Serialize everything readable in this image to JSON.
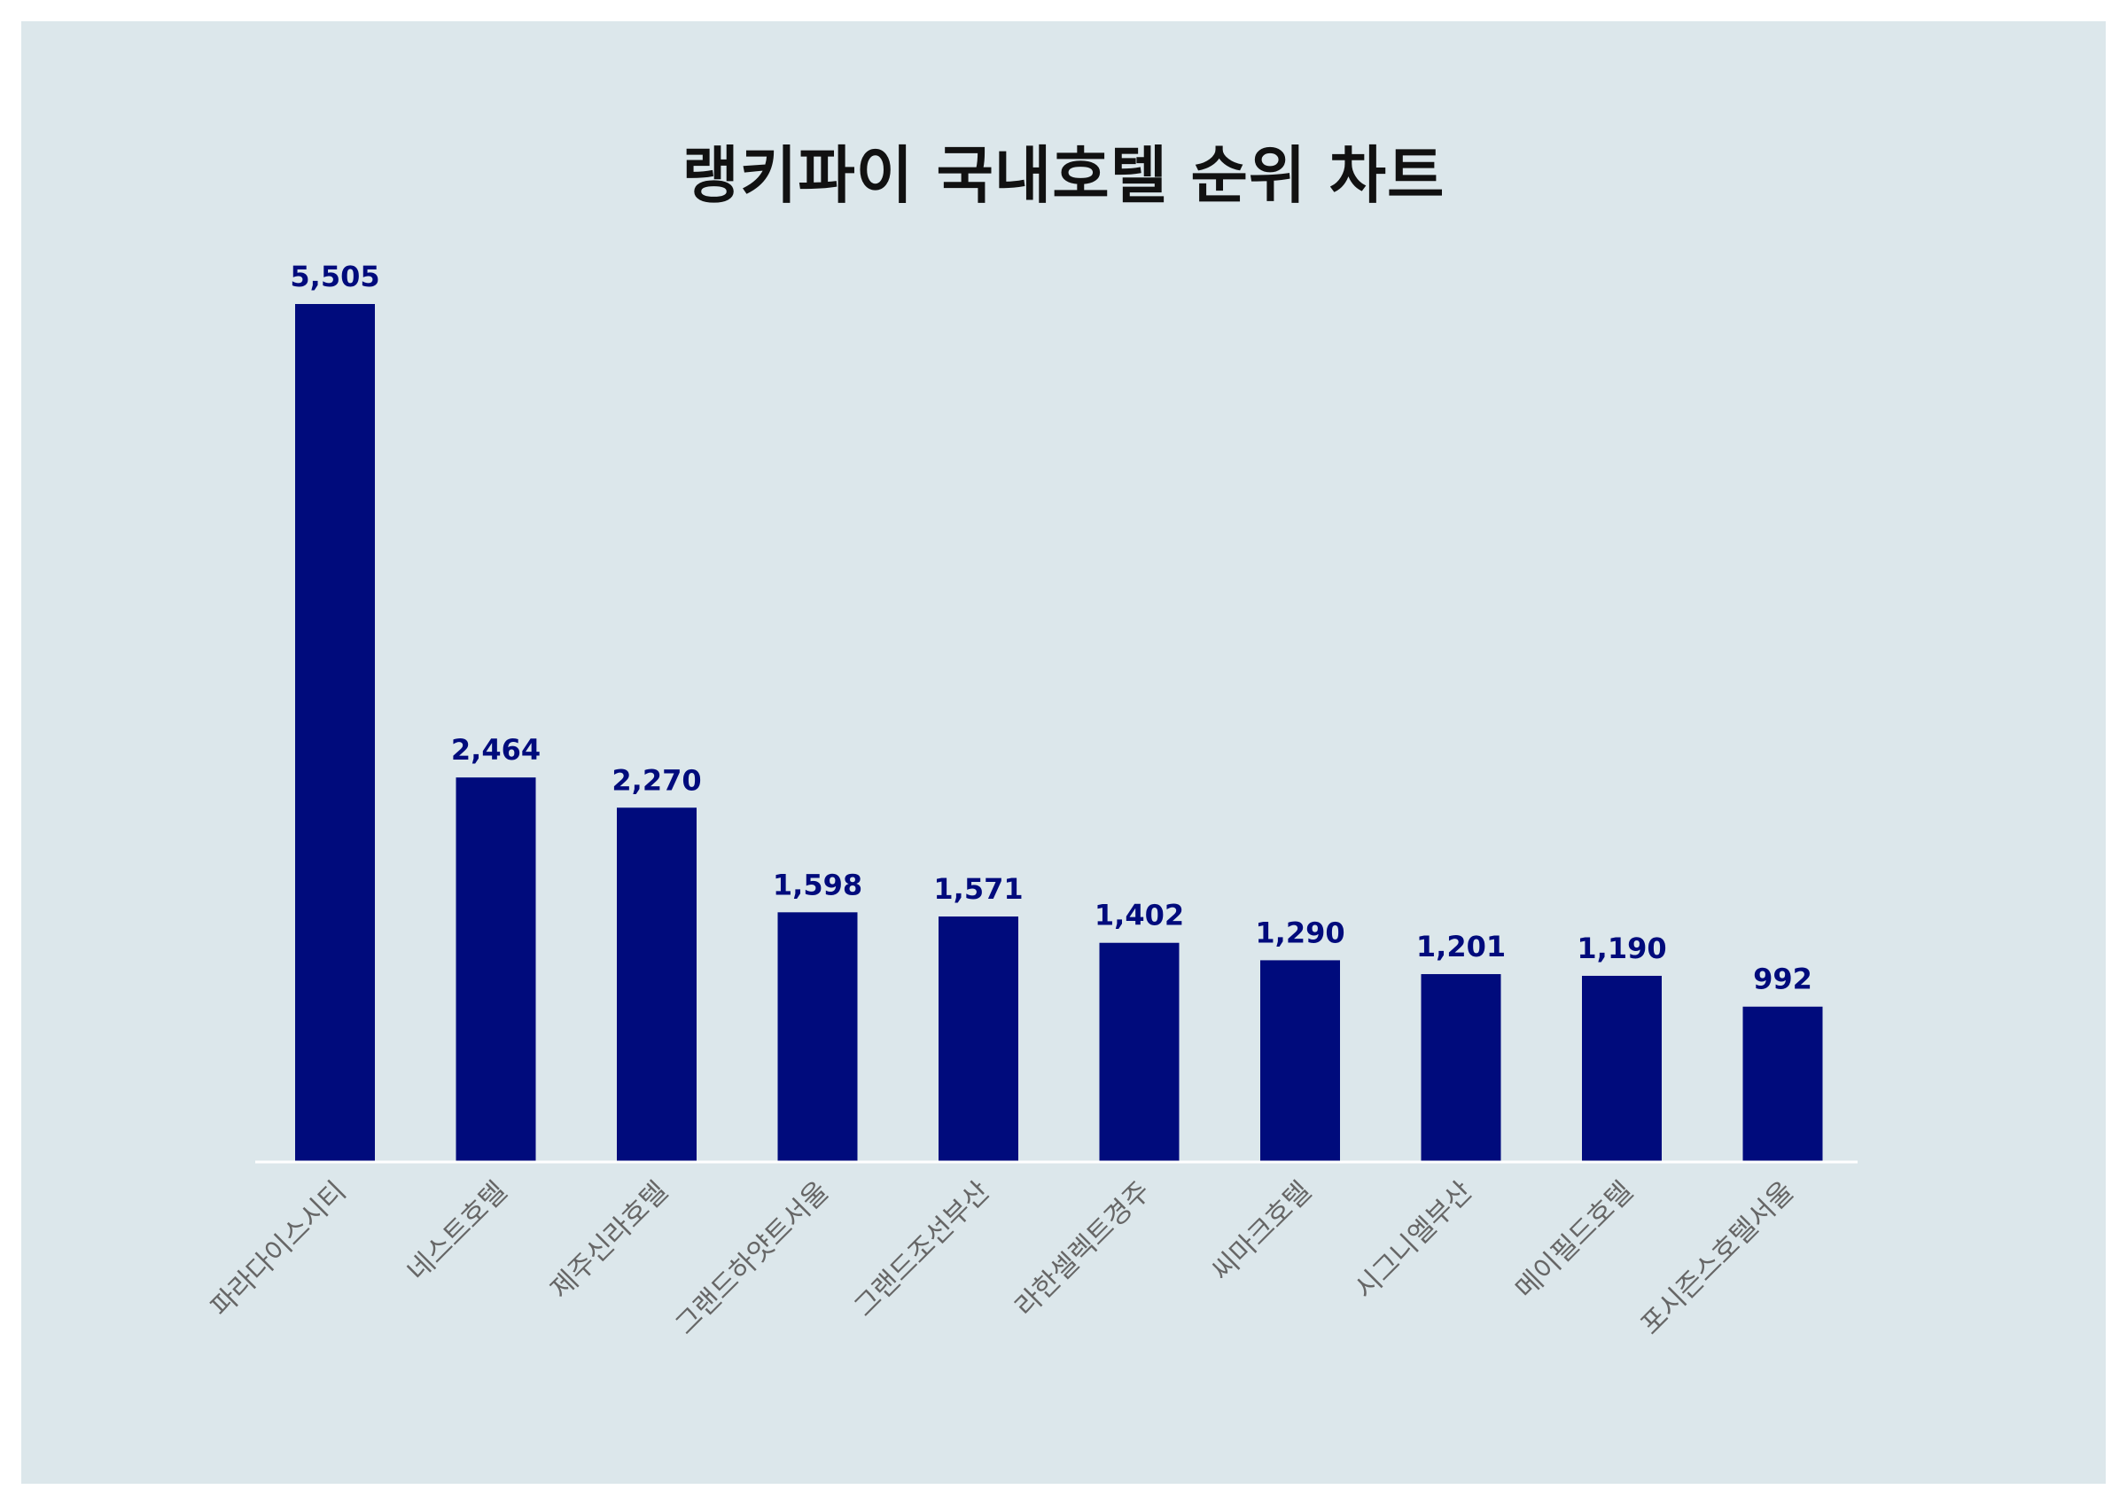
{
  "chart_data": {
    "type": "bar",
    "title": "랭키파이 국내호텔 순위 차트",
    "xlabel": "",
    "ylabel": "",
    "categories": [
      "파라다이스시티",
      "네스트호텔",
      "제주신라호텔",
      "그랜드하얏트서울",
      "그랜드조선부산",
      "라한셀렉트경주",
      "씨마크호텔",
      "시그니엘부산",
      "메이필드호텔",
      "포시즌스호텔서울"
    ],
    "values": [
      5505,
      2464,
      2270,
      1598,
      1571,
      1402,
      1290,
      1201,
      1190,
      992
    ],
    "value_labels": [
      "5,505",
      "2,464",
      "2,270",
      "1,598",
      "1,571",
      "1,402",
      "1,290",
      "1,201",
      "1,190",
      "992"
    ],
    "ylim": [
      0,
      5505
    ],
    "grid": false,
    "legend": "none",
    "colors": {
      "bar": "#000b7c",
      "background": "#dce7eb",
      "value_label": "#000b7c",
      "tick_label": "#666666"
    }
  }
}
